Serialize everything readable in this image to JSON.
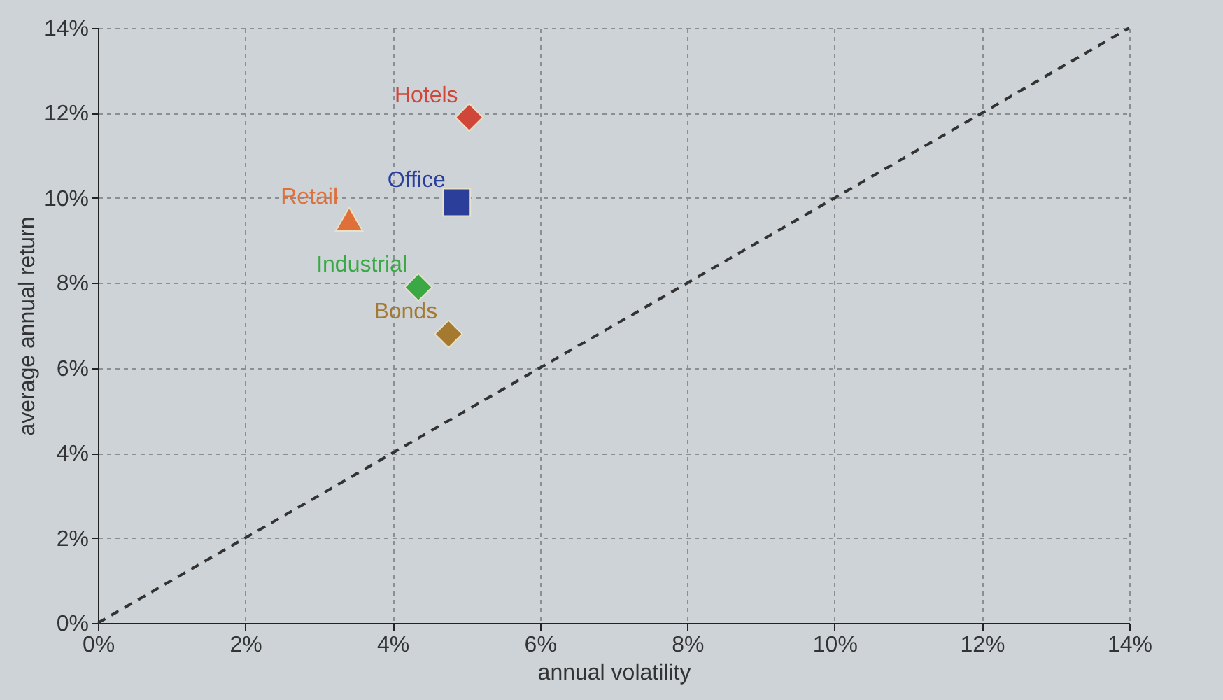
{
  "chart_data": {
    "type": "scatter",
    "xlabel": "annual volatility",
    "ylabel": "average annual return",
    "xlim": [
      0,
      14
    ],
    "ylim": [
      0,
      14
    ],
    "xticks": [
      {
        "value": 0,
        "label": "0%"
      },
      {
        "value": 2,
        "label": "2%"
      },
      {
        "value": 4,
        "label": "4%"
      },
      {
        "value": 6,
        "label": "6%"
      },
      {
        "value": 8,
        "label": "8%"
      },
      {
        "value": 10,
        "label": "10%"
      },
      {
        "value": 12,
        "label": "12%"
      },
      {
        "value": 14,
        "label": "14%"
      }
    ],
    "yticks": [
      {
        "value": 0,
        "label": "0%"
      },
      {
        "value": 2,
        "label": "2%"
      },
      {
        "value": 4,
        "label": "4%"
      },
      {
        "value": 6,
        "label": "6%"
      },
      {
        "value": 8,
        "label": "8%"
      },
      {
        "value": 10,
        "label": "10%"
      },
      {
        "value": 12,
        "label": "12%"
      },
      {
        "value": 14,
        "label": "14%"
      }
    ],
    "grid": true,
    "series": [
      {
        "name": "Hotels",
        "color": "#d0473a",
        "marker": "diamond",
        "x": [
          5.04
        ],
        "values": [
          11.9
        ]
      },
      {
        "name": "Office",
        "color": "#2b3f9a",
        "marker": "square",
        "x": [
          4.87
        ],
        "values": [
          9.9
        ]
      },
      {
        "name": "Retail",
        "color": "#e0703a",
        "marker": "triangle",
        "x": [
          3.41
        ],
        "values": [
          9.5
        ]
      },
      {
        "name": "Industrial",
        "color": "#3aa845",
        "marker": "diamond",
        "x": [
          4.35
        ],
        "values": [
          7.9
        ]
      },
      {
        "name": "Bonds",
        "color": "#a57a30",
        "marker": "diamond",
        "x": [
          4.76
        ],
        "values": [
          6.8
        ]
      },
      {
        "type": "line",
        "color": "#333333",
        "line_style": "dashed",
        "marker": "none",
        "x": [
          0,
          14
        ],
        "values": [
          0,
          14
        ]
      }
    ]
  }
}
